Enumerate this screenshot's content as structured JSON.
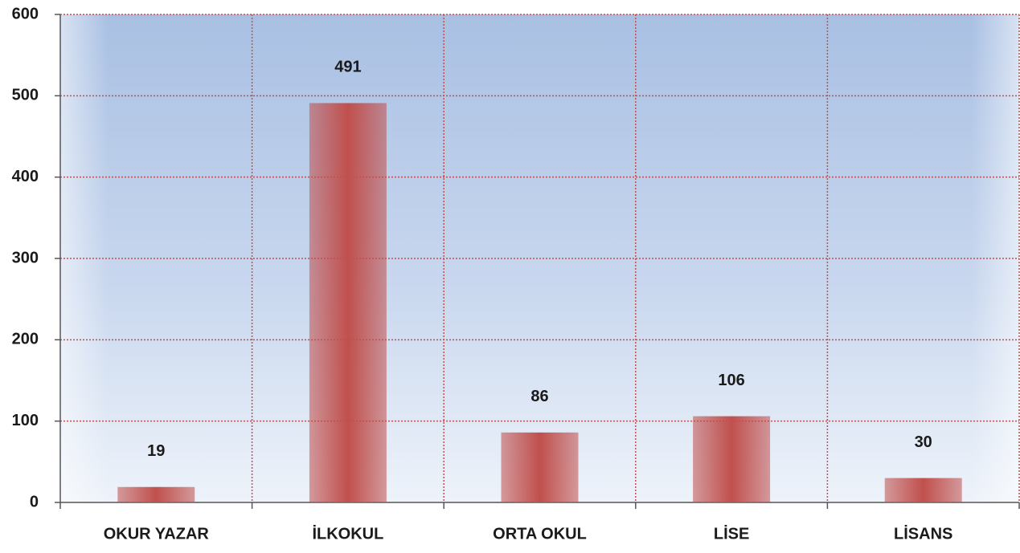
{
  "chart_data": {
    "type": "bar",
    "categories": [
      "OKUR YAZAR",
      "İLKOKUL",
      "ORTA OKUL",
      "LİSE",
      "LİSANS"
    ],
    "values": [
      19,
      491,
      86,
      106,
      30
    ],
    "color": "#c0504d",
    "ylim": [
      0,
      600
    ],
    "yticks": [
      0,
      100,
      200,
      300,
      400,
      500,
      600
    ],
    "grid": true
  }
}
